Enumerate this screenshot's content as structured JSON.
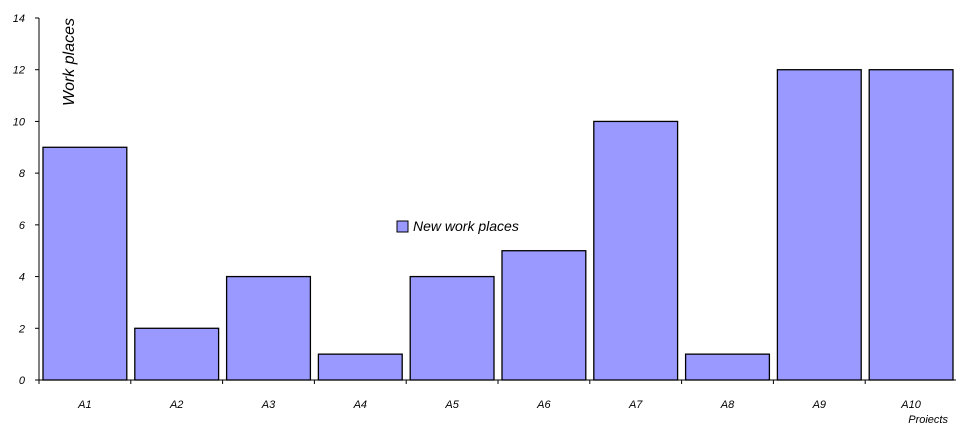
{
  "chart_data": {
    "type": "bar",
    "categories": [
      "A1",
      "A2",
      "A3",
      "A4",
      "A5",
      "A6",
      "A7",
      "A8",
      "A9",
      "A10"
    ],
    "series": [
      {
        "name": "New work places",
        "values": [
          9,
          2,
          4,
          1,
          4,
          5,
          10,
          1,
          12,
          12
        ]
      }
    ],
    "ylabel": "Work places",
    "xlabel": "Proiects",
    "ylim": [
      0,
      14
    ],
    "yticks": [
      "0",
      "2",
      "4",
      "6",
      "8",
      "10",
      "12",
      "14"
    ],
    "grid": false,
    "legend_position": "center",
    "colors": {
      "bar": "#9999ff",
      "bar_stroke": "#000000"
    }
  }
}
